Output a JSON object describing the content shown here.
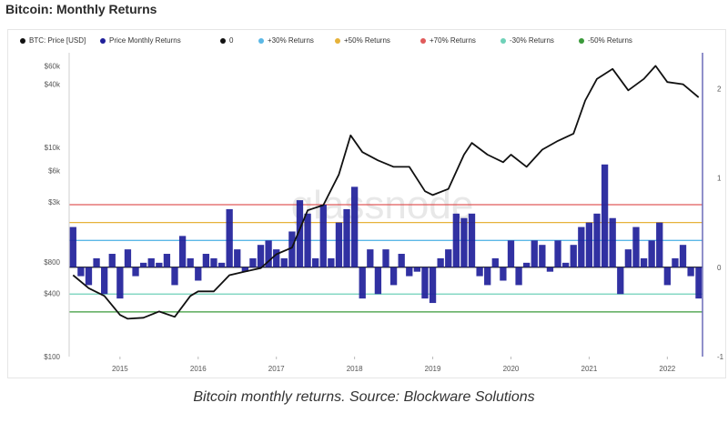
{
  "title": "Bitcoin: Monthly Returns",
  "caption": "Bitcoin monthly returns. Source: Blockware Solutions",
  "watermark": "glassnode",
  "legend": [
    {
      "label": "BTC: Price [USD]",
      "color": "#111111"
    },
    {
      "label": "Price Monthly Returns",
      "color": "#1f1f9a"
    },
    {
      "label": "0",
      "color": "#111111"
    },
    {
      "label": "+30% Returns",
      "color": "#5bb8e6"
    },
    {
      "label": "+50% Returns",
      "color": "#e6b23a"
    },
    {
      "label": "+70% Returns",
      "color": "#e05a5a"
    },
    {
      "label": "-30% Returns",
      "color": "#6ed1b8"
    },
    {
      "label": "-50% Returns",
      "color": "#3a9a3a"
    }
  ],
  "chart_data": {
    "type": "line",
    "x_ticks": [
      "2015",
      "2016",
      "2017",
      "2018",
      "2019",
      "2020",
      "2021",
      "2022"
    ],
    "y_left_ticks": [
      "$60k",
      "$40k",
      "$10k",
      "$6k",
      "$3k",
      "$800",
      "$400",
      "$100"
    ],
    "y_right_ticks": [
      "2",
      "1",
      "0",
      "-1"
    ],
    "ylim_right": [
      -1,
      2.4
    ],
    "thresholds": [
      {
        "name": "+70% Returns",
        "value": 0.7,
        "color": "#e05a5a"
      },
      {
        "name": "+50% Returns",
        "value": 0.5,
        "color": "#e6b23a"
      },
      {
        "name": "+30% Returns",
        "value": 0.3,
        "color": "#5bb8e6"
      },
      {
        "name": "0",
        "value": 0.0,
        "color": "#111111"
      },
      {
        "name": "-30% Returns",
        "value": -0.3,
        "color": "#6ed1b8"
      },
      {
        "name": "-50% Returns",
        "value": -0.5,
        "color": "#3a9a3a"
      }
    ],
    "series": [
      {
        "name": "BTC: Price [USD]",
        "axis": "left",
        "color": "#111111",
        "x": [
          2014.4,
          2014.6,
          2014.8,
          2015.0,
          2015.1,
          2015.3,
          2015.5,
          2015.7,
          2015.9,
          2016.0,
          2016.2,
          2016.4,
          2016.6,
          2016.8,
          2017.0,
          2017.2,
          2017.4,
          2017.6,
          2017.8,
          2017.95,
          2018.1,
          2018.3,
          2018.5,
          2018.7,
          2018.9,
          2019.0,
          2019.2,
          2019.4,
          2019.5,
          2019.7,
          2019.9,
          2020.0,
          2020.2,
          2020.4,
          2020.6,
          2020.8,
          2020.95,
          2021.1,
          2021.3,
          2021.5,
          2021.7,
          2021.85,
          2022.0,
          2022.2,
          2022.4
        ],
        "y": [
          600,
          450,
          380,
          250,
          230,
          235,
          270,
          240,
          380,
          420,
          420,
          600,
          650,
          700,
          950,
          1100,
          2500,
          2800,
          5500,
          13000,
          9000,
          7500,
          6500,
          6500,
          3800,
          3500,
          4000,
          8500,
          11000,
          8500,
          7200,
          8500,
          6500,
          9500,
          11500,
          13500,
          28000,
          45000,
          56000,
          35000,
          45000,
          60000,
          42000,
          40000,
          30000
        ]
      },
      {
        "name": "Price Monthly Returns",
        "axis": "right",
        "color": "#1f1f9a",
        "x": [
          2014.4,
          2014.5,
          2014.6,
          2014.7,
          2014.8,
          2014.9,
          2015.0,
          2015.1,
          2015.2,
          2015.3,
          2015.4,
          2015.5,
          2015.6,
          2015.7,
          2015.8,
          2015.9,
          2016.0,
          2016.1,
          2016.2,
          2016.3,
          2016.4,
          2016.5,
          2016.6,
          2016.7,
          2016.8,
          2016.9,
          2017.0,
          2017.1,
          2017.2,
          2017.3,
          2017.4,
          2017.5,
          2017.6,
          2017.7,
          2017.8,
          2017.9,
          2018.0,
          2018.1,
          2018.2,
          2018.3,
          2018.4,
          2018.5,
          2018.6,
          2018.7,
          2018.8,
          2018.9,
          2019.0,
          2019.1,
          2019.2,
          2019.3,
          2019.4,
          2019.5,
          2019.6,
          2019.7,
          2019.8,
          2019.9,
          2020.0,
          2020.1,
          2020.2,
          2020.3,
          2020.4,
          2020.5,
          2020.6,
          2020.7,
          2020.8,
          2020.9,
          2021.0,
          2021.1,
          2021.2,
          2021.3,
          2021.4,
          2021.5,
          2021.6,
          2021.7,
          2021.8,
          2021.9,
          2022.0,
          2022.1,
          2022.2,
          2022.3,
          2022.4
        ],
        "y": [
          0.45,
          -0.1,
          -0.2,
          0.1,
          -0.3,
          0.15,
          -0.35,
          0.2,
          -0.1,
          0.05,
          0.1,
          0.05,
          0.15,
          -0.2,
          0.35,
          0.1,
          -0.15,
          0.15,
          0.1,
          0.05,
          0.65,
          0.2,
          -0.05,
          0.1,
          0.25,
          0.3,
          0.2,
          0.1,
          0.4,
          0.75,
          0.6,
          0.1,
          0.7,
          0.1,
          0.5,
          0.65,
          0.9,
          -0.35,
          0.2,
          -0.3,
          0.2,
          -0.2,
          0.15,
          -0.1,
          -0.05,
          -0.35,
          -0.4,
          0.1,
          0.2,
          0.6,
          0.55,
          0.6,
          -0.1,
          -0.2,
          0.1,
          -0.15,
          0.3,
          -0.2,
          0.05,
          0.3,
          0.25,
          -0.05,
          0.3,
          0.05,
          0.25,
          0.45,
          0.5,
          0.6,
          1.15,
          0.55,
          -0.3,
          0.2,
          0.45,
          0.1,
          0.3,
          0.5,
          -0.2,
          0.1,
          0.25,
          -0.1,
          -0.35
        ]
      }
    ]
  }
}
